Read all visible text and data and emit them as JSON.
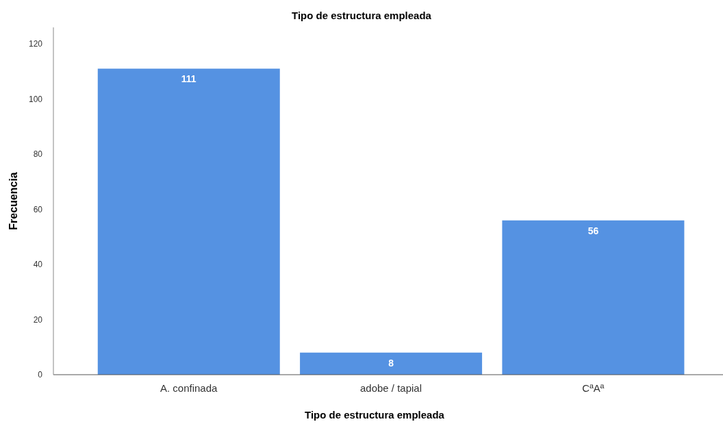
{
  "chart_data": {
    "type": "bar",
    "title": "Tipo de estructura empleada",
    "xlabel": "Tipo de estructura empleada",
    "ylabel": "Frecuencia",
    "categories": [
      "A. confinada",
      "adobe / tapial",
      "CªAª"
    ],
    "values": [
      111,
      8,
      56
    ],
    "color": "#5592e2",
    "ylim": [
      0,
      126
    ],
    "yticks": [
      0,
      20,
      40,
      60,
      80,
      100,
      120
    ],
    "data_labels": true
  }
}
